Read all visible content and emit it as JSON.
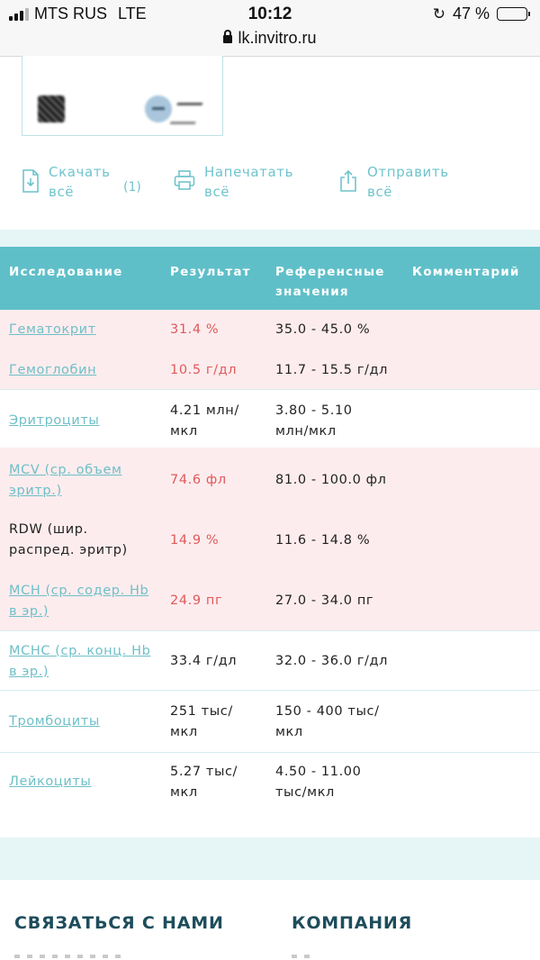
{
  "status_bar": {
    "carrier": "MTS RUS",
    "network": "LTE",
    "time": "10:12",
    "battery": "47 %",
    "battery_fraction": 0.47,
    "url": "lk.invitro.ru"
  },
  "actions": {
    "download": "Скачать всё",
    "download_count": "(1)",
    "print": "Напечатать всё",
    "send": "Отправить всё"
  },
  "table": {
    "headers": {
      "study": "Исследование",
      "result": "Результат",
      "reference": "Референсные значения",
      "comment": "Комментарий"
    },
    "rows": [
      {
        "name": "Гематокрит",
        "result": "31.4 %",
        "reference": "35.0 - 45.0 %"
      },
      {
        "name": "Гемоглобин",
        "result": "10.5 г/дл",
        "reference": "11.7 - 15.5 г/дл"
      },
      {
        "name": "Эритроциты",
        "result": "4.21 млн/ мкл",
        "reference": "3.80 - 5.10 млн/мкл"
      },
      {
        "name": "MCV (ср. объем эритр.)",
        "result": "74.6 фл",
        "reference": "81.0 - 100.0 фл"
      },
      {
        "name": "RDW (шир. распред. эритр)",
        "result": "14.9 %",
        "reference": "11.6 - 14.8 %"
      },
      {
        "name": "MCH (ср. содер. Hb в эр.)",
        "result": "24.9 пг",
        "reference": "27.0 - 34.0 пг"
      },
      {
        "name": "MCHC (ср. конц. Hb в эр.)",
        "result": "33.4 г/дл",
        "reference": "32.0 - 36.0 г/дл"
      },
      {
        "name": "Тромбоциты",
        "result": "251 тыс/ мкл",
        "reference": "150 - 400 тыс/ мкл"
      },
      {
        "name": "Лейкоциты",
        "result": "5.27 тыс/ мкл",
        "reference": "4.50 - 11.00 тыс/мкл"
      }
    ]
  },
  "footer": {
    "contact": "СВЯЗАТЬСЯ С НАМИ",
    "company": "КОМПАНИЯ"
  },
  "colors": {
    "accent": "#5fbfc8",
    "link": "#6ebfc7",
    "abnormal_text": "#e05a5a",
    "abnormal_row": "#fdecee"
  }
}
